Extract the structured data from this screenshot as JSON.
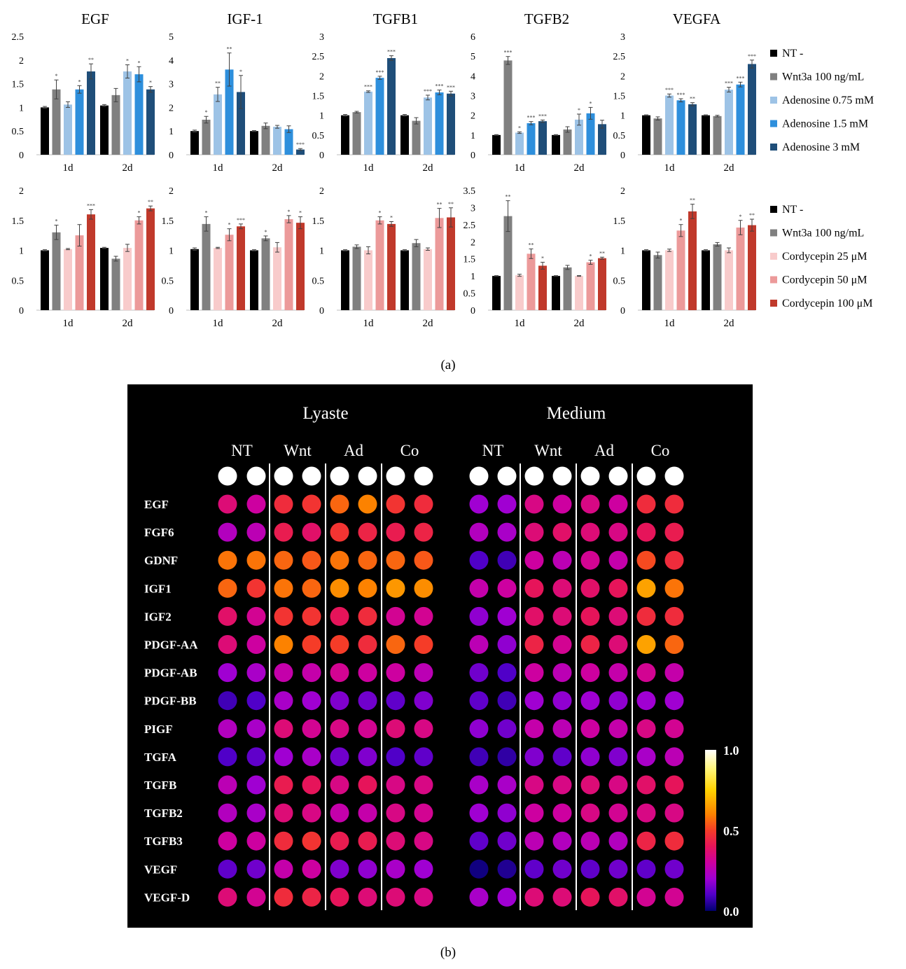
{
  "panel_labels": {
    "a": "(a)",
    "b": "(b)"
  },
  "chart_data": {
    "bar_charts": {
      "type": "bar",
      "categories": [
        "1d",
        "2d"
      ],
      "legend_top": [
        {
          "name": "NT -",
          "color": "#000000"
        },
        {
          "name": "Wnt3a 100 ng/mL",
          "color": "#808080"
        },
        {
          "name": "Adenosine 0.75 mM",
          "color": "#9dc3e6"
        },
        {
          "name": "Adenosine 1.5 mM",
          "color": "#2e8fdc"
        },
        {
          "name": "Adenosine 3 mM",
          "color": "#1f4e79"
        }
      ],
      "legend_bottom": [
        {
          "name": "NT -",
          "color": "#000000"
        },
        {
          "name": "Wnt3a 100 ng/mL",
          "color": "#808080"
        },
        {
          "name": "Cordycepin 25 μM",
          "color": "#f8cbcb"
        },
        {
          "name": "Cordycepin 50 μM",
          "color": "#ec9a9a"
        },
        {
          "name": "Cordycepin 100 μM",
          "color": "#c0392b"
        }
      ],
      "charts": [
        {
          "row": 0,
          "title": "EGF",
          "ylim": [
            0,
            2.5
          ],
          "ticks": [
            "0",
            "0.5",
            "1",
            "1.5",
            "2",
            "2.5"
          ],
          "tickvals": [
            0,
            0.5,
            1,
            1.5,
            2,
            2.5
          ],
          "values": [
            [
              1.0,
              1.38,
              1.06,
              1.38,
              1.76
            ],
            [
              1.04,
              1.26,
              1.76,
              1.7,
              1.38
            ]
          ],
          "errors": [
            [
              0.02,
              0.2,
              0.06,
              0.08,
              0.16
            ],
            [
              0.02,
              0.14,
              0.14,
              0.16,
              0.06
            ]
          ],
          "sig": [
            [
              "",
              "*",
              "",
              "*",
              "**"
            ],
            [
              "",
              "",
              "*",
              "*",
              "*"
            ]
          ]
        },
        {
          "row": 0,
          "title": "IGF-1",
          "ylim": [
            0,
            5
          ],
          "ticks": [
            "0",
            "1",
            "2",
            "3",
            "4",
            "5"
          ],
          "tickvals": [
            0,
            1,
            2,
            3,
            4,
            5
          ],
          "values": [
            [
              1.0,
              1.48,
              2.55,
              3.6,
              2.65
            ],
            [
              1.0,
              1.22,
              1.18,
              1.08,
              0.22
            ]
          ],
          "errors": [
            [
              0.04,
              0.14,
              0.3,
              0.7,
              0.7
            ],
            [
              0.02,
              0.12,
              0.06,
              0.14,
              0.04
            ]
          ],
          "sig": [
            [
              "",
              "*",
              "**",
              "**",
              "*"
            ],
            [
              "",
              "",
              "",
              "",
              "***"
            ]
          ]
        },
        {
          "row": 0,
          "title": "TGFB1",
          "ylim": [
            0,
            3
          ],
          "ticks": [
            "0",
            "0.5",
            "1",
            "1.5",
            "2",
            "2.5",
            "3"
          ],
          "tickvals": [
            0,
            0.5,
            1,
            1.5,
            2,
            2.5,
            3
          ],
          "values": [
            [
              1.0,
              1.08,
              1.6,
              1.95,
              2.45
            ],
            [
              1.0,
              0.86,
              1.45,
              1.58,
              1.55
            ]
          ],
          "errors": [
            [
              0.02,
              0.02,
              0.02,
              0.04,
              0.06
            ],
            [
              0.02,
              0.08,
              0.06,
              0.06,
              0.06
            ]
          ],
          "sig": [
            [
              "",
              "",
              "***",
              "***",
              "***"
            ],
            [
              "",
              "",
              "***",
              "***",
              "***"
            ]
          ]
        },
        {
          "row": 0,
          "title": "TGFB2",
          "ylim": [
            0,
            6
          ],
          "ticks": [
            "0",
            "1",
            "2",
            "3",
            "4",
            "5",
            "6"
          ],
          "tickvals": [
            0,
            1,
            2,
            3,
            4,
            5,
            6
          ],
          "values": [
            [
              1.0,
              4.78,
              1.12,
              1.6,
              1.7
            ],
            [
              1.0,
              1.28,
              1.78,
              2.1,
              1.55
            ]
          ],
          "errors": [
            [
              0.02,
              0.2,
              0.04,
              0.08,
              0.06
            ],
            [
              0.02,
              0.14,
              0.28,
              0.3,
              0.2
            ]
          ],
          "sig": [
            [
              "",
              "***",
              "*",
              "***",
              "***"
            ],
            [
              "",
              "",
              "*",
              "*",
              ""
            ]
          ]
        },
        {
          "row": 0,
          "title": "VEGFA",
          "ylim": [
            0,
            3
          ],
          "ticks": [
            "0",
            "0.5",
            "1",
            "1.5",
            "2",
            "2.5",
            "3"
          ],
          "tickvals": [
            0,
            0.5,
            1,
            1.5,
            2,
            2.5,
            3
          ],
          "values": [
            [
              1.0,
              0.92,
              1.5,
              1.38,
              1.28
            ],
            [
              1.0,
              0.98,
              1.65,
              1.78,
              2.3
            ]
          ],
          "errors": [
            [
              0.01,
              0.04,
              0.04,
              0.04,
              0.04
            ],
            [
              0.01,
              0.02,
              0.06,
              0.06,
              0.1
            ]
          ],
          "sig": [
            [
              "",
              "",
              "***",
              "***",
              "**"
            ],
            [
              "",
              "",
              "***",
              "***",
              "***"
            ]
          ]
        },
        {
          "row": 1,
          "title": "",
          "ylim": [
            0,
            2
          ],
          "ticks": [
            "0",
            "0.5",
            "1",
            "1.5",
            "2"
          ],
          "tickvals": [
            0,
            0.5,
            1,
            1.5,
            2
          ],
          "values": [
            [
              1.0,
              1.3,
              1.02,
              1.25,
              1.6
            ],
            [
              1.04,
              0.86,
              1.04,
              1.5,
              1.7
            ]
          ],
          "errors": [
            [
              0.01,
              0.12,
              0.01,
              0.18,
              0.08
            ],
            [
              0.01,
              0.04,
              0.06,
              0.06,
              0.04
            ]
          ],
          "sig": [
            [
              "",
              "*",
              "",
              "",
              "***"
            ],
            [
              "",
              "",
              "",
              "*",
              "**"
            ]
          ]
        },
        {
          "row": 1,
          "title": "",
          "ylim": [
            0,
            2
          ],
          "ticks": [
            "0",
            "0.5",
            "1",
            "1.5",
            "2"
          ],
          "tickvals": [
            0,
            0.5,
            1,
            1.5,
            2
          ],
          "values": [
            [
              1.02,
              1.44,
              1.04,
              1.26,
              1.4
            ],
            [
              1.0,
              1.2,
              1.05,
              1.52,
              1.46
            ]
          ],
          "errors": [
            [
              0.02,
              0.12,
              0.01,
              0.1,
              0.04
            ],
            [
              0.01,
              0.04,
              0.08,
              0.06,
              0.1
            ]
          ],
          "sig": [
            [
              "",
              "*",
              "",
              "*",
              "***"
            ],
            [
              "",
              "*",
              "",
              "*",
              "*"
            ]
          ]
        },
        {
          "row": 1,
          "title": "",
          "ylim": [
            0,
            2
          ],
          "ticks": [
            "0",
            "0.5",
            "1",
            "1.5",
            "2"
          ],
          "tickvals": [
            0,
            0.5,
            1,
            1.5,
            2
          ],
          "values": [
            [
              1.0,
              1.06,
              1.0,
              1.5,
              1.44
            ],
            [
              1.0,
              1.12,
              1.02,
              1.54,
              1.55
            ]
          ],
          "errors": [
            [
              0.01,
              0.03,
              0.06,
              0.06,
              0.04
            ],
            [
              0.01,
              0.06,
              0.02,
              0.16,
              0.16
            ]
          ],
          "sig": [
            [
              "",
              "",
              "",
              "*",
              "*"
            ],
            [
              "",
              "",
              "",
              "**",
              "**"
            ]
          ]
        },
        {
          "row": 1,
          "title": "",
          "ylim": [
            0,
            3.5
          ],
          "ticks": [
            "0",
            "0.5",
            "1",
            "1.5",
            "2",
            "2.5",
            "3",
            "3.5"
          ],
          "tickvals": [
            0,
            0.5,
            1,
            1.5,
            2,
            2.5,
            3,
            3.5
          ],
          "values": [
            [
              1.0,
              2.75,
              1.02,
              1.65,
              1.3
            ],
            [
              1.0,
              1.25,
              1.0,
              1.4,
              1.52
            ]
          ],
          "errors": [
            [
              0.01,
              0.45,
              0.03,
              0.14,
              0.1
            ],
            [
              0.01,
              0.06,
              0.01,
              0.06,
              0.03
            ]
          ],
          "sig": [
            [
              "",
              "**",
              "",
              "**",
              "*"
            ],
            [
              "",
              "",
              "",
              "*",
              "**"
            ]
          ]
        },
        {
          "row": 1,
          "title": "",
          "ylim": [
            0,
            2
          ],
          "ticks": [
            "0",
            "0.5",
            "1",
            "1.5",
            "2"
          ],
          "tickvals": [
            0,
            0.5,
            1,
            1.5,
            2
          ],
          "values": [
            [
              1.0,
              0.92,
              1.0,
              1.33,
              1.65
            ],
            [
              1.0,
              1.1,
              1.0,
              1.38,
              1.42
            ]
          ],
          "errors": [
            [
              0.01,
              0.05,
              0.02,
              0.1,
              0.12
            ],
            [
              0.01,
              0.03,
              0.04,
              0.12,
              0.1
            ]
          ],
          "sig": [
            [
              "",
              "",
              "",
              "*",
              "**"
            ],
            [
              "",
              "",
              "",
              "*",
              "**"
            ]
          ]
        }
      ]
    },
    "heatmap": {
      "type": "heatmap",
      "groups": [
        {
          "title": "Lyaste",
          "conditions": [
            "NT",
            "Wnt",
            "Ad",
            "Co"
          ]
        },
        {
          "title": "Medium",
          "conditions": [
            "NT",
            "Wnt",
            "Ad",
            "Co"
          ]
        }
      ],
      "rows": [
        "EGF",
        "FGF6",
        "GDNF",
        "IGF1",
        "IGF2",
        "PDGF-AA",
        "PDGF-AB",
        "PDGF-BB",
        "PIGF",
        "TGFA",
        "TGFB",
        "TGFB2",
        "TGFB3",
        "VEGF",
        "VEGF-D"
      ],
      "colorbar": {
        "min": 0.0,
        "max": 1.0,
        "labels": [
          "1.0",
          "0.5",
          "0.0"
        ],
        "label_values": [
          1.0,
          0.5,
          0.0
        ]
      },
      "reference_value": 1.0,
      "values": [
        [
          0.36,
          0.3,
          0.46,
          0.48,
          0.56,
          0.6,
          0.48,
          0.46,
          0.2,
          0.2,
          0.34,
          0.3,
          0.34,
          0.3,
          0.46,
          0.46
        ],
        [
          0.24,
          0.26,
          0.42,
          0.38,
          0.48,
          0.44,
          0.42,
          0.44,
          0.24,
          0.22,
          0.36,
          0.38,
          0.36,
          0.34,
          0.4,
          0.42
        ],
        [
          0.58,
          0.58,
          0.56,
          0.54,
          0.58,
          0.56,
          0.56,
          0.54,
          0.1,
          0.08,
          0.3,
          0.26,
          0.32,
          0.28,
          0.52,
          0.46
        ],
        [
          0.56,
          0.48,
          0.58,
          0.56,
          0.62,
          0.6,
          0.64,
          0.62,
          0.28,
          0.3,
          0.4,
          0.36,
          0.38,
          0.4,
          0.66,
          0.58
        ],
        [
          0.38,
          0.32,
          0.48,
          0.48,
          0.4,
          0.46,
          0.32,
          0.32,
          0.18,
          0.2,
          0.38,
          0.36,
          0.4,
          0.36,
          0.46,
          0.46
        ],
        [
          0.36,
          0.3,
          0.6,
          0.5,
          0.5,
          0.46,
          0.56,
          0.5,
          0.26,
          0.18,
          0.44,
          0.32,
          0.44,
          0.36,
          0.66,
          0.56
        ],
        [
          0.2,
          0.22,
          0.28,
          0.28,
          0.32,
          0.3,
          0.3,
          0.26,
          0.14,
          0.1,
          0.3,
          0.26,
          0.3,
          0.28,
          0.32,
          0.28
        ],
        [
          0.08,
          0.1,
          0.22,
          0.2,
          0.16,
          0.14,
          0.12,
          0.16,
          0.12,
          0.08,
          0.2,
          0.18,
          0.2,
          0.18,
          0.2,
          0.2
        ],
        [
          0.24,
          0.22,
          0.36,
          0.32,
          0.34,
          0.32,
          0.36,
          0.34,
          0.18,
          0.14,
          0.28,
          0.26,
          0.3,
          0.28,
          0.34,
          0.32
        ],
        [
          0.1,
          0.12,
          0.2,
          0.22,
          0.14,
          0.16,
          0.1,
          0.12,
          0.08,
          0.06,
          0.16,
          0.12,
          0.18,
          0.16,
          0.22,
          0.26
        ],
        [
          0.26,
          0.2,
          0.42,
          0.4,
          0.34,
          0.4,
          0.34,
          0.34,
          0.22,
          0.22,
          0.34,
          0.34,
          0.36,
          0.34,
          0.38,
          0.4
        ],
        [
          0.24,
          0.22,
          0.36,
          0.34,
          0.28,
          0.28,
          0.34,
          0.32,
          0.2,
          0.18,
          0.3,
          0.3,
          0.34,
          0.32,
          0.34,
          0.34
        ],
        [
          0.3,
          0.3,
          0.46,
          0.48,
          0.42,
          0.42,
          0.36,
          0.34,
          0.12,
          0.14,
          0.26,
          0.24,
          0.26,
          0.24,
          0.44,
          0.46
        ],
        [
          0.12,
          0.14,
          0.28,
          0.3,
          0.16,
          0.18,
          0.22,
          0.2,
          0.02,
          0.04,
          0.12,
          0.14,
          0.12,
          0.14,
          0.12,
          0.14
        ],
        [
          0.36,
          0.32,
          0.46,
          0.44,
          0.4,
          0.36,
          0.36,
          0.34,
          0.22,
          0.2,
          0.36,
          0.36,
          0.4,
          0.38,
          0.32,
          0.32
        ]
      ]
    }
  }
}
